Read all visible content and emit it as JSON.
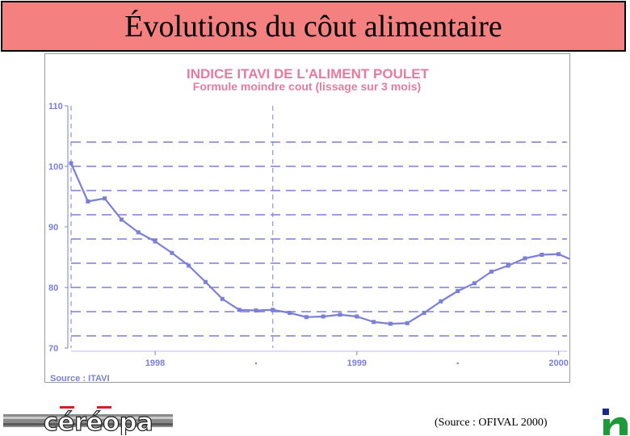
{
  "slide": {
    "title": "Évolutions du côut alimentaire",
    "source_note": "(Source : OFIVAL 2000)",
    "footer_logo_text": "céréopa"
  },
  "colors": {
    "banner": "#f58080",
    "chart_ink": "#7b7fd6",
    "title_text": "#e87a9e",
    "grid": "#7b7fd6"
  },
  "icons": {
    "footer_logo": "cereopa-logo",
    "corner_logo": "organization-logo"
  },
  "chart_data": {
    "type": "line",
    "title": "INDICE ITAVI DE L'ALIMENT POULET",
    "subtitle": "Formule moindre cout (lissage sur 3 mois)",
    "xlabel": "",
    "ylabel": "",
    "source": "Source : ITAVI",
    "ylim": [
      70,
      110
    ],
    "xlim": [
      0,
      29.5
    ],
    "yticks": [
      70,
      80,
      90,
      100,
      110
    ],
    "ytick_labels": [
      "70",
      "80",
      "90",
      "100",
      "110"
    ],
    "xtick_labels": [
      {
        "x": 5,
        "label": "1998"
      },
      {
        "x": 17,
        "label": "1999"
      },
      {
        "x": 29,
        "label": "2000"
      }
    ],
    "x_minor_dots": [
      11,
      23
    ],
    "hgrid_dashed": [
      72,
      76,
      80,
      84,
      88,
      92,
      96,
      100,
      104
    ],
    "vgrid_dashed": [
      0,
      12
    ],
    "grid": true,
    "series": [
      {
        "x": [
          0,
          1,
          2,
          3,
          4,
          5,
          6,
          7,
          8,
          9,
          10,
          11,
          12,
          13,
          14,
          15,
          16,
          17,
          18,
          19,
          20,
          21,
          22,
          23,
          24,
          25,
          26,
          27,
          28,
          29,
          30
        ],
        "values": [
          100.5,
          94.2,
          94.7,
          91.2,
          89.1,
          87.6,
          85.7,
          83.6,
          80.9,
          78.1,
          76.3,
          76.2,
          76.3,
          75.8,
          75.1,
          75.2,
          75.5,
          75.2,
          74.3,
          74.0,
          74.1,
          75.8,
          77.7,
          79.4,
          80.7,
          82.6,
          83.6,
          84.8,
          85.4,
          85.5,
          84.3
        ]
      }
    ]
  }
}
